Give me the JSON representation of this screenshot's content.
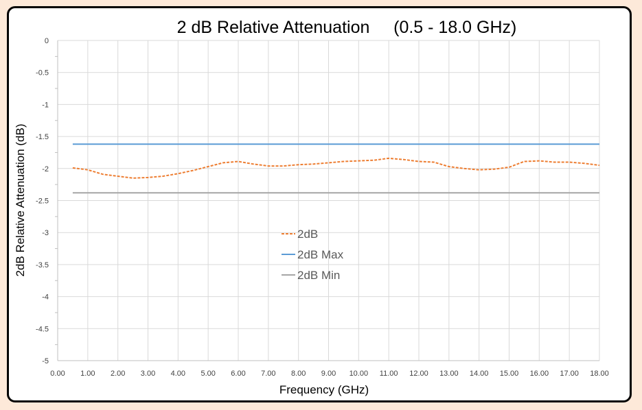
{
  "chart_data": {
    "type": "line",
    "title": "2 dB Relative Attenuation     (0.5 - 18.0 GHz)",
    "xlabel": "Frequency (GHz)",
    "ylabel": "2dB Relative Attenuation (dB)",
    "xlim": [
      0,
      18
    ],
    "ylim": [
      -5,
      0
    ],
    "x_ticks": [
      "0.00",
      "1.00",
      "2.00",
      "3.00",
      "4.00",
      "5.00",
      "6.00",
      "7.00",
      "8.00",
      "9.00",
      "10.00",
      "11.00",
      "12.00",
      "13.00",
      "14.00",
      "15.00",
      "16.00",
      "17.00",
      "18.00"
    ],
    "y_ticks": [
      "0",
      "-0.5",
      "-1",
      "-1.5",
      "-2",
      "-2.5",
      "-3",
      "-3.5",
      "-4",
      "-4.5",
      "-5"
    ],
    "grid": true,
    "legend_position": "center",
    "series": [
      {
        "name": "2dB",
        "color": "#ed7d31",
        "dash": "dashed",
        "x": [
          0.5,
          1.0,
          1.5,
          2.0,
          2.5,
          3.0,
          3.5,
          4.0,
          4.5,
          5.0,
          5.5,
          6.0,
          6.5,
          7.0,
          7.5,
          8.0,
          8.5,
          9.0,
          9.5,
          10.0,
          10.5,
          11.0,
          11.5,
          12.0,
          12.5,
          13.0,
          13.5,
          14.0,
          14.5,
          15.0,
          15.5,
          16.0,
          16.5,
          17.0,
          17.5,
          18.0
        ],
        "values": [
          -1.99,
          -2.02,
          -2.09,
          -2.12,
          -2.15,
          -2.14,
          -2.12,
          -2.08,
          -2.03,
          -1.97,
          -1.91,
          -1.89,
          -1.93,
          -1.96,
          -1.96,
          -1.94,
          -1.93,
          -1.91,
          -1.89,
          -1.88,
          -1.87,
          -1.84,
          -1.86,
          -1.89,
          -1.9,
          -1.97,
          -2.0,
          -2.02,
          -2.01,
          -1.98,
          -1.89,
          -1.88,
          -1.9,
          -1.9,
          -1.92,
          -1.95
        ]
      },
      {
        "name": "2dB Max",
        "color": "#5b9bd5",
        "dash": "solid",
        "x": [
          0.5,
          18.0
        ],
        "values": [
          -1.62,
          -1.62
        ]
      },
      {
        "name": "2dB Min",
        "color": "#a5a5a5",
        "dash": "solid",
        "x": [
          0.5,
          18.0
        ],
        "values": [
          -2.38,
          -2.38
        ]
      }
    ]
  }
}
